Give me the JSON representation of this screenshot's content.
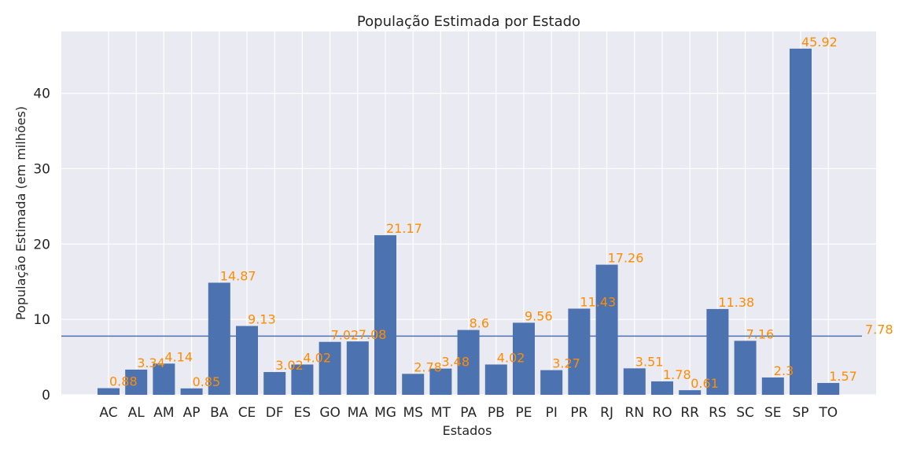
{
  "chart_data": {
    "type": "bar",
    "title": "População Estimada por Estado",
    "xlabel": "Estados",
    "ylabel": "População Estimada (em milhões)",
    "categories": [
      "AC",
      "AL",
      "AM",
      "AP",
      "BA",
      "CE",
      "DF",
      "ES",
      "GO",
      "MA",
      "MG",
      "MS",
      "MT",
      "PA",
      "PB",
      "PE",
      "PI",
      "PR",
      "RJ",
      "RN",
      "RO",
      "RR",
      "RS",
      "SC",
      "SE",
      "SP",
      "TO"
    ],
    "values": [
      0.88,
      3.34,
      4.14,
      0.85,
      14.87,
      9.13,
      3.02,
      4.02,
      7.02,
      7.08,
      21.17,
      2.78,
      3.48,
      8.6,
      4.02,
      9.56,
      3.27,
      11.43,
      17.26,
      3.51,
      1.78,
      0.61,
      11.38,
      7.16,
      2.3,
      45.92,
      1.57
    ],
    "value_labels": [
      "0.88",
      "3.34",
      "4.14",
      "0.85",
      "14.87",
      "9.13",
      "3.02",
      "4.02",
      "7.02",
      "7.08",
      "21.17",
      "2.78",
      "3.48",
      "8.6",
      "4.02",
      "9.56",
      "3.27",
      "11.43",
      "17.26",
      "3.51",
      "1.78",
      "0.61",
      "11.38",
      "7.16",
      "2.3",
      "45.92",
      "1.57"
    ],
    "ylim": [
      0,
      48.2
    ],
    "yticks": [
      0,
      10,
      20,
      30,
      40
    ],
    "ytick_labels": [
      "0",
      "10",
      "20",
      "30",
      "40"
    ],
    "average_line": {
      "value": 7.78,
      "label": "7.78"
    },
    "grid": true,
    "colors": {
      "bar": "#4c72b0",
      "label": "#ff8c00",
      "background": "#eaeaf2",
      "grid": "#ffffff",
      "avg_line": "#4c72b0"
    }
  }
}
